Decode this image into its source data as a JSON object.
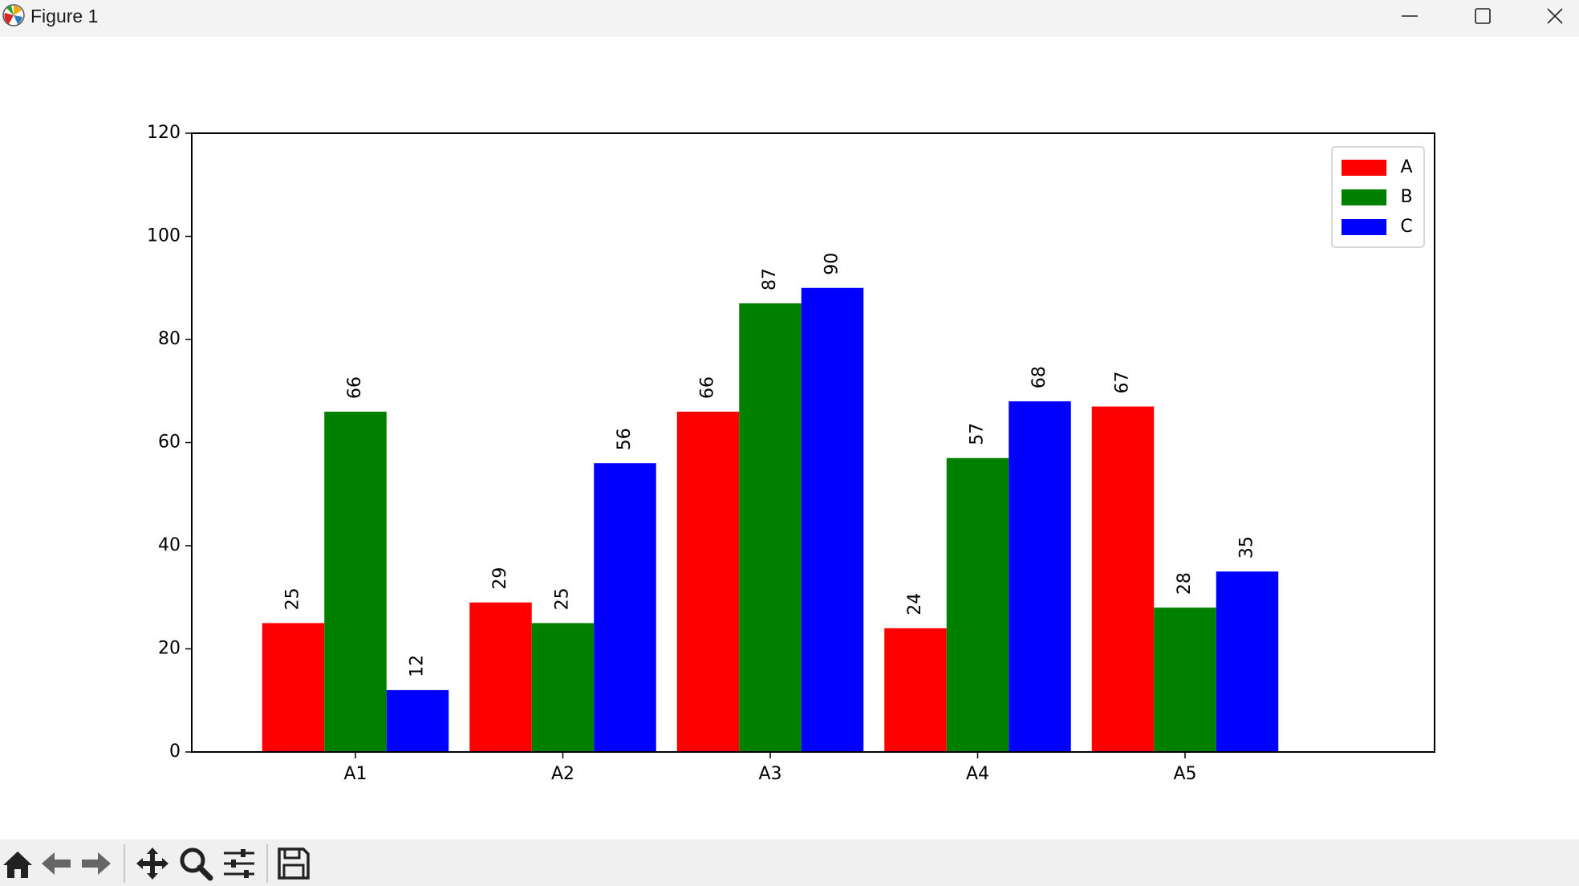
{
  "window": {
    "title": "Figure 1",
    "controls": [
      "minimize-icon",
      "maximize-icon",
      "close-icon"
    ]
  },
  "toolbar": {
    "buttons": [
      {
        "name": "home-icon"
      },
      {
        "name": "back-arrow-icon"
      },
      {
        "name": "forward-arrow-icon"
      },
      {
        "name": "pan-icon"
      },
      {
        "name": "zoom-icon"
      },
      {
        "name": "configure-subplots-icon"
      },
      {
        "name": "save-icon"
      }
    ]
  },
  "chart_data": {
    "type": "bar",
    "categories": [
      "A1",
      "A2",
      "A3",
      "A4",
      "A5"
    ],
    "series": [
      {
        "name": "A",
        "color": "#ff0000",
        "values": [
          25,
          29,
          66,
          24,
          67
        ]
      },
      {
        "name": "B",
        "color": "#008000",
        "values": [
          66,
          25,
          87,
          57,
          28
        ]
      },
      {
        "name": "C",
        "color": "#0000ff",
        "values": [
          12,
          56,
          90,
          68,
          35
        ]
      }
    ],
    "ylim": [
      0,
      120
    ],
    "yticks": [
      0,
      20,
      40,
      60,
      80,
      100,
      120
    ],
    "data_labels": "rotated 90 degrees above each bar",
    "legend_position": "top-right",
    "grid": false,
    "title": "",
    "xlabel": "",
    "ylabel": ""
  }
}
